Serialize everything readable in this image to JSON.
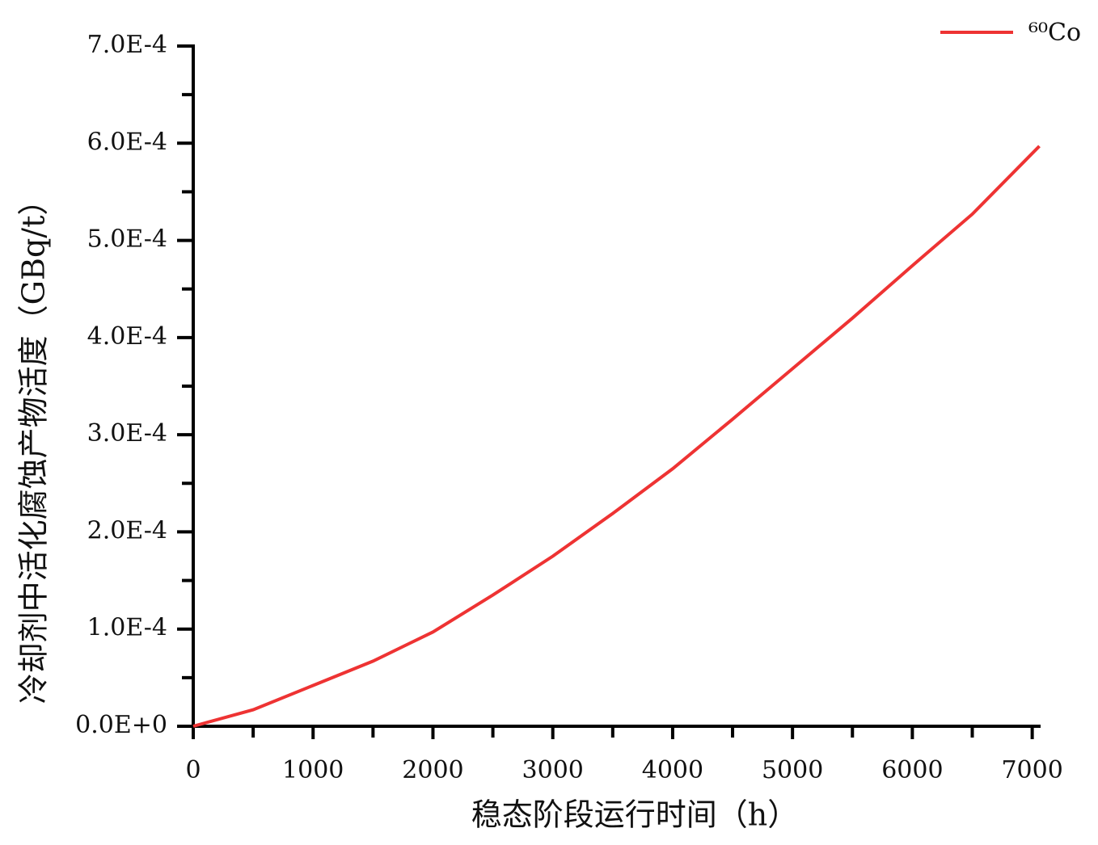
{
  "chart_data": {
    "type": "line",
    "x_label": "稳态阶段运行时间（h）",
    "y_label": "冷却剂中活化腐蚀产物活度（GBq/t）",
    "x": [
      0,
      500,
      1000,
      1500,
      2000,
      2500,
      3000,
      3500,
      4000,
      4500,
      5000,
      5500,
      6000,
      6500,
      7060
    ],
    "series": [
      {
        "name": "⁶⁰Co",
        "color": "#ee3333",
        "values": [
          0,
          1.7e-05,
          4.2e-05,
          6.7e-05,
          9.7e-05,
          0.000135,
          0.000175,
          0.000219,
          0.000265,
          0.000316,
          0.000368,
          0.00042,
          0.000474,
          0.000527,
          0.000597
        ]
      }
    ],
    "xlim": [
      0,
      7070
    ],
    "xticks": [
      0,
      1000,
      2000,
      3000,
      4000,
      5000,
      6000,
      7000
    ],
    "xminorticks": [
      500,
      1500,
      2500,
      3500,
      4500,
      5500,
      6500
    ],
    "ylim": [
      0,
      0.0007
    ],
    "yticks": [
      {
        "value": 0,
        "label": "0.0E+0"
      },
      {
        "value": 0.0001,
        "label": "1.0E-4"
      },
      {
        "value": 0.0002,
        "label": "2.0E-4"
      },
      {
        "value": 0.0003,
        "label": "3.0E-4"
      },
      {
        "value": 0.0004,
        "label": "4.0E-4"
      },
      {
        "value": 0.0005,
        "label": "5.0E-4"
      },
      {
        "value": 0.0006,
        "label": "6.0E-4"
      },
      {
        "value": 0.0007,
        "label": "7.0E-4"
      }
    ],
    "yminorticks": [
      5e-05,
      0.00015,
      0.00025,
      0.00035,
      0.00045,
      0.00055,
      0.00065
    ],
    "legend": "top-right"
  }
}
